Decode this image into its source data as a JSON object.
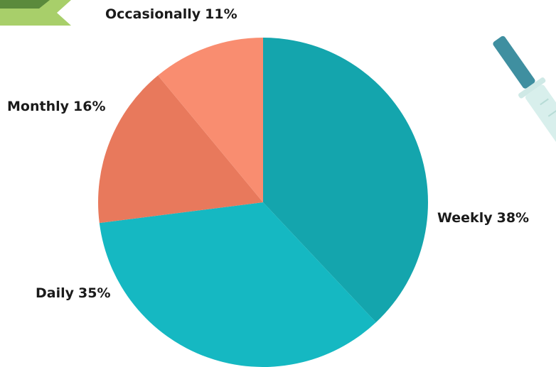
{
  "chart_data": {
    "type": "pie",
    "categories": [
      "Weekly",
      "Daily",
      "Monthly",
      "Occasionally"
    ],
    "values": [
      38,
      35,
      16,
      11
    ],
    "value_labels": [
      "38%",
      "35%",
      "16%",
      "11%"
    ],
    "colors": [
      "#14a5ad",
      "#15b8c2",
      "#e8795c",
      "#f98d70"
    ]
  }
}
